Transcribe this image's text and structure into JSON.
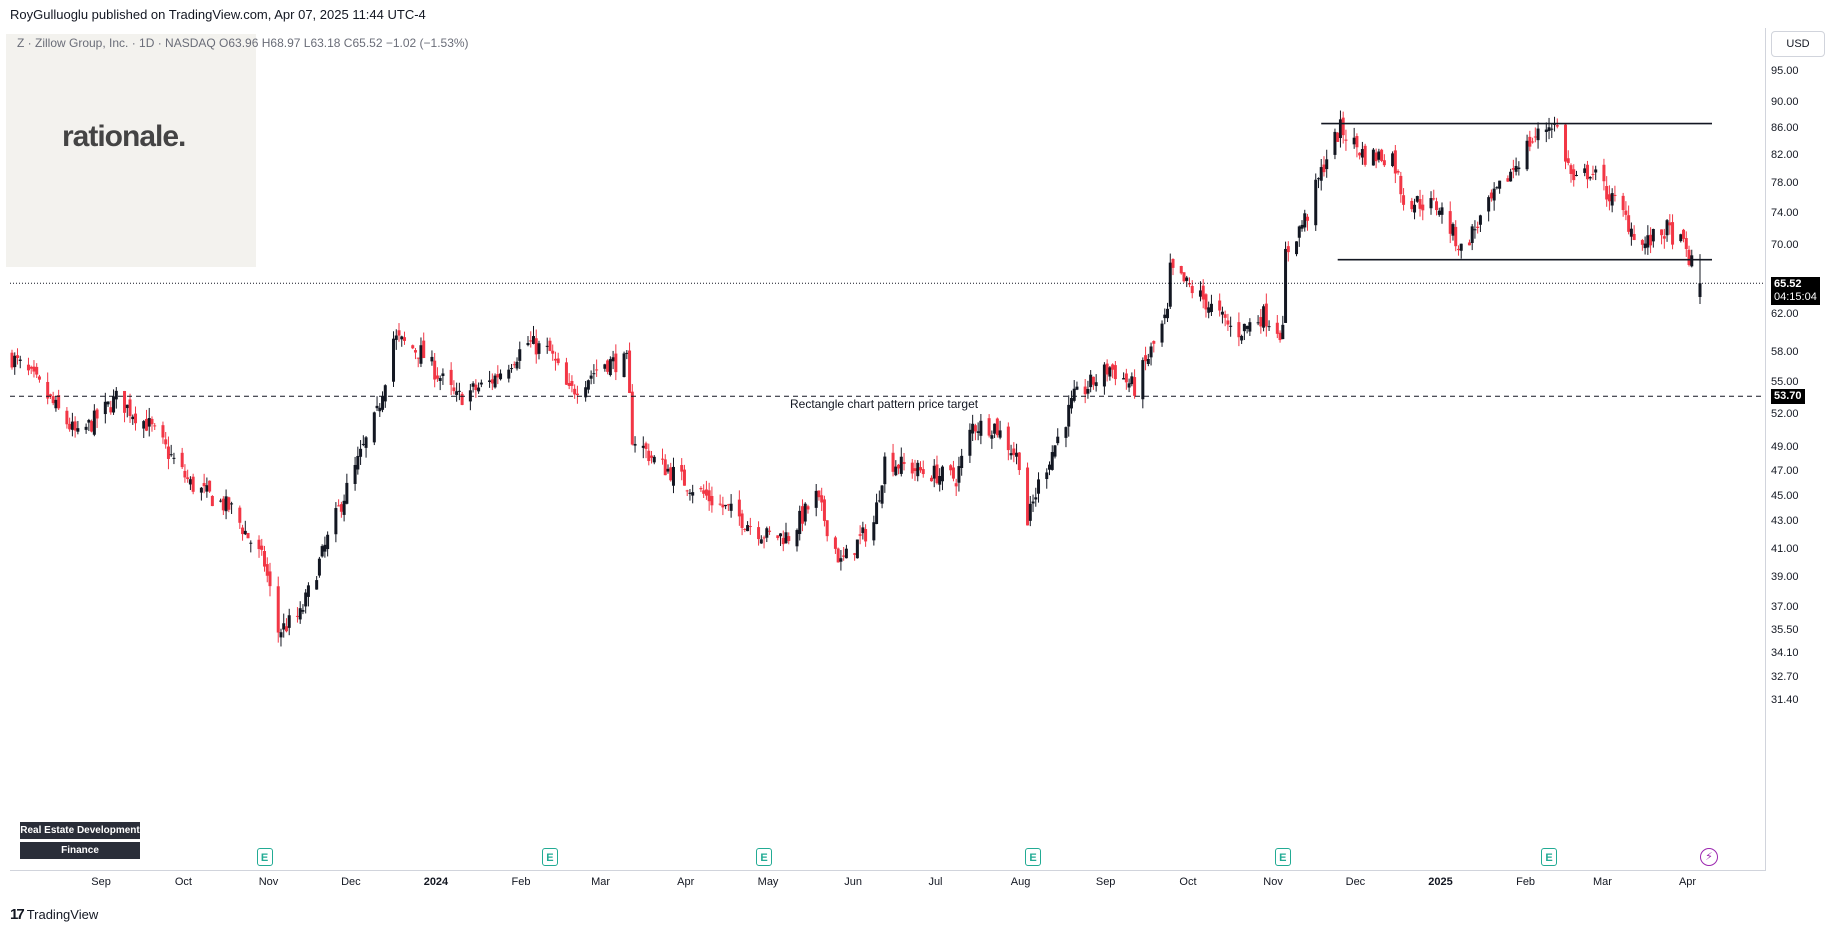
{
  "header": {
    "publisher": "RoyGulluoglu published on TradingView.com, Apr 07, 2025 11:44 UTC-4"
  },
  "symbol": {
    "line": "Z · Zillow Group, Inc. · 1D · NASDAQ  O63.96  H68.97  L63.18  C65.52  −1.02 (−1.53%)"
  },
  "logo": {
    "text": "rationale."
  },
  "currency": "USD",
  "badges": {
    "sector": "Real Estate Development",
    "category": "Finance"
  },
  "footer": {
    "brand": "TradingView",
    "icon": "tradingview-logo-icon"
  },
  "annotation": {
    "text": "Rectangle chart pattern price target"
  },
  "price_tags": {
    "last_price": "65.52",
    "countdown": "04:15:04",
    "target": "53.70"
  },
  "colors": {
    "up": "#131722",
    "down": "#f23645",
    "earnings": "#22ab94",
    "flash": "#9c27b0"
  },
  "chart_data": {
    "type": "candlestick",
    "price_axis": {
      "scale": "log",
      "ticks": [
        "95.00",
        "90.00",
        "86.00",
        "82.00",
        "78.00",
        "74.00",
        "70.00",
        "62.00",
        "58.00",
        "55.00",
        "52.00",
        "49.00",
        "47.00",
        "45.00",
        "43.00",
        "41.00",
        "39.00",
        "37.00",
        "35.50",
        "34.10",
        "32.70",
        "31.40"
      ]
    },
    "time_axis": {
      "labels": [
        {
          "text": "Sep"
        },
        {
          "text": "Oct"
        },
        {
          "text": "Nov"
        },
        {
          "text": "Dec"
        },
        {
          "text": "2024",
          "bold": true
        },
        {
          "text": "Feb"
        },
        {
          "text": "Mar"
        },
        {
          "text": "Apr"
        },
        {
          "text": "May"
        },
        {
          "text": "Jun"
        },
        {
          "text": "Jul"
        },
        {
          "text": "Aug"
        },
        {
          "text": "Sep"
        },
        {
          "text": "Oct"
        },
        {
          "text": "Nov"
        },
        {
          "text": "Dec"
        },
        {
          "text": "2025",
          "bold": true
        },
        {
          "text": "Feb"
        },
        {
          "text": "Mar"
        },
        {
          "text": "Apr"
        }
      ]
    },
    "horizontal_lines": [
      {
        "name": "rectangle-top",
        "price": 86.8,
        "from": "2024-11-20",
        "to": "2025-04-07"
      },
      {
        "name": "rectangle-bottom",
        "price": 68.3,
        "from": "2024-11-26",
        "to": "2025-04-07"
      },
      {
        "name": "price-target",
        "price": 53.7,
        "style": "dashed"
      },
      {
        "name": "last-price",
        "price": 65.52,
        "style": "dotted"
      }
    ],
    "earnings_events": [
      "2023-11-01",
      "2024-02-13",
      "2024-05-01",
      "2024-08-07",
      "2024-11-06",
      "2025-02-11"
    ],
    "anchors": [
      [
        "2023-08-01",
        57.5
      ],
      [
        "2023-08-10",
        55
      ],
      [
        "2023-08-25",
        50
      ],
      [
        "2023-09-08",
        53.5
      ],
      [
        "2023-09-20",
        51
      ],
      [
        "2023-10-05",
        46
      ],
      [
        "2023-10-20",
        44
      ],
      [
        "2023-11-01",
        40
      ],
      [
        "2023-11-06",
        35.5
      ],
      [
        "2023-11-14",
        36.5
      ],
      [
        "2023-11-28",
        44
      ],
      [
        "2023-12-12",
        52
      ],
      [
        "2023-12-18",
        59.5
      ],
      [
        "2023-12-28",
        58
      ],
      [
        "2024-01-10",
        53.5
      ],
      [
        "2024-01-22",
        55
      ],
      [
        "2024-02-05",
        59
      ],
      [
        "2024-02-13",
        58
      ],
      [
        "2024-02-20",
        54
      ],
      [
        "2024-03-04",
        57
      ],
      [
        "2024-03-12",
        57
      ],
      [
        "2024-03-14",
        50
      ],
      [
        "2024-03-22",
        48
      ],
      [
        "2024-04-10",
        45
      ],
      [
        "2024-04-25",
        43
      ],
      [
        "2024-05-02",
        42
      ],
      [
        "2024-05-10",
        42
      ],
      [
        "2024-05-20",
        45
      ],
      [
        "2024-05-29",
        40
      ],
      [
        "2024-06-10",
        43
      ],
      [
        "2024-06-14",
        48
      ],
      [
        "2024-06-28",
        47
      ],
      [
        "2024-07-10",
        46.5
      ],
      [
        "2024-07-16",
        51
      ],
      [
        "2024-07-24",
        51
      ],
      [
        "2024-08-02",
        48
      ],
      [
        "2024-08-05",
        43
      ],
      [
        "2024-08-09",
        46
      ],
      [
        "2024-08-22",
        53.5
      ],
      [
        "2024-09-04",
        56.5
      ],
      [
        "2024-09-13",
        54.5
      ],
      [
        "2024-09-25",
        62
      ],
      [
        "2024-09-26",
        67
      ],
      [
        "2024-10-07",
        64
      ],
      [
        "2024-10-20",
        60
      ],
      [
        "2024-10-30",
        62
      ],
      [
        "2024-11-06",
        60
      ],
      [
        "2024-11-07",
        69
      ],
      [
        "2024-11-15",
        74
      ],
      [
        "2024-11-22",
        82
      ],
      [
        "2024-11-27",
        86
      ],
      [
        "2024-12-06",
        82
      ],
      [
        "2024-12-16",
        82
      ],
      [
        "2024-12-20",
        76
      ],
      [
        "2025-01-02",
        75
      ],
      [
        "2025-01-10",
        69.5
      ],
      [
        "2025-01-20",
        75
      ],
      [
        "2025-02-04",
        84
      ],
      [
        "2025-02-12",
        87
      ],
      [
        "2025-02-14",
        86
      ],
      [
        "2025-02-20",
        78
      ],
      [
        "2025-02-26",
        80
      ],
      [
        "2025-03-10",
        74
      ],
      [
        "2025-03-17",
        70
      ],
      [
        "2025-03-26",
        72
      ],
      [
        "2025-04-01",
        70
      ],
      [
        "2025-04-07",
        65.52
      ]
    ],
    "last_bar": {
      "open": 63.96,
      "high": 68.97,
      "low": 63.18,
      "close": 65.52
    }
  }
}
